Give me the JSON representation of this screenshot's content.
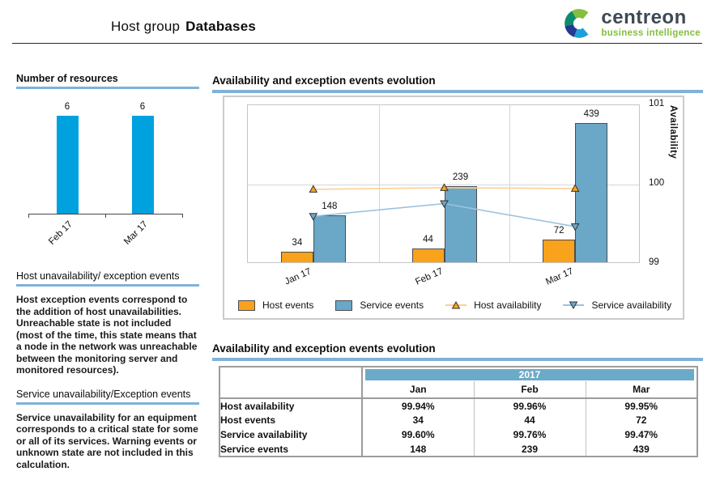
{
  "header": {
    "title_prefix": "Host group",
    "title_bold": "Databases",
    "logo_name": "centreon",
    "logo_subtitle": "business intelligence"
  },
  "sidebar": {
    "host_section": {
      "title": "Host unavailability/ exception events",
      "body": "Host exception events correspond to the addition of host unavailabilities. Unreachable state is not included (most of the time, this state means that a node in the network was unreachable between the monitoring server and monitored resources)."
    },
    "service_section": {
      "title": "Service unavailability/Exception events",
      "body": "Service unavailability for an equipment corresponds to a critical state for some or all of its services. Warning events or unknown state are not included in this calculation."
    }
  },
  "colors": {
    "accent_underline": "#7fb2d9",
    "host_events_bar": "#f9a21b",
    "service_events_bar": "#6ba7c7",
    "host_availability_line": "#fbcf96",
    "service_availability_line": "#9cc3dd",
    "resources_bar": "#00a1df",
    "table_year_band": "#6caac9"
  },
  "chart_data": [
    {
      "name": "number-of-resources",
      "type": "bar",
      "title": "Number of resources",
      "categories": [
        "Feb 17",
        "Mar 17"
      ],
      "values": [
        6,
        6
      ],
      "ylim": [
        0,
        6.6
      ],
      "grid": false,
      "bar_color": "#00a1df"
    },
    {
      "name": "availability-and-exception-events-evolution",
      "type": "bar",
      "title": "Availability and exception events evolution",
      "categories": [
        "Jan 17",
        "Feb 17",
        "Mar 17"
      ],
      "series": [
        {
          "name": "Host events",
          "type": "bar",
          "values": [
            34,
            44,
            72
          ],
          "color": "#f9a21b"
        },
        {
          "name": "Service events",
          "type": "bar",
          "values": [
            148,
            239,
            439
          ],
          "color": "#6ba7c7"
        },
        {
          "name": "Host availability",
          "type": "line",
          "values": [
            99.94,
            99.96,
            99.95
          ],
          "marker": "triangle-up",
          "marker_color": "#f9a21b",
          "line_color": "#fbcf96"
        },
        {
          "name": "Service availability",
          "type": "line",
          "values": [
            99.6,
            99.76,
            99.47
          ],
          "marker": "triangle-down",
          "marker_color": "#6ba7c7",
          "line_color": "#9cc3dd"
        }
      ],
      "bar_axis_range": [
        0,
        500
      ],
      "y2label": "Availability",
      "y2ticks": [
        101,
        100,
        99
      ],
      "y2lim": [
        99,
        101
      ],
      "grid": true,
      "legend_position": "bottom"
    },
    {
      "name": "availability-and-exception-events-table",
      "type": "table",
      "title": "Availability and exception events evolution",
      "year_header": "2017",
      "columns": [
        "Jan",
        "Feb",
        "Mar"
      ],
      "rows": [
        {
          "label": "Host availability",
          "values": [
            "99.94%",
            "99.96%",
            "99.95%"
          ]
        },
        {
          "label": "Host events",
          "values": [
            "34",
            "44",
            "72"
          ]
        },
        {
          "label": "Service availability",
          "values": [
            "99.60%",
            "99.76%",
            "99.47%"
          ]
        },
        {
          "label": "Service events",
          "values": [
            "148",
            "239",
            "439"
          ]
        }
      ]
    }
  ]
}
